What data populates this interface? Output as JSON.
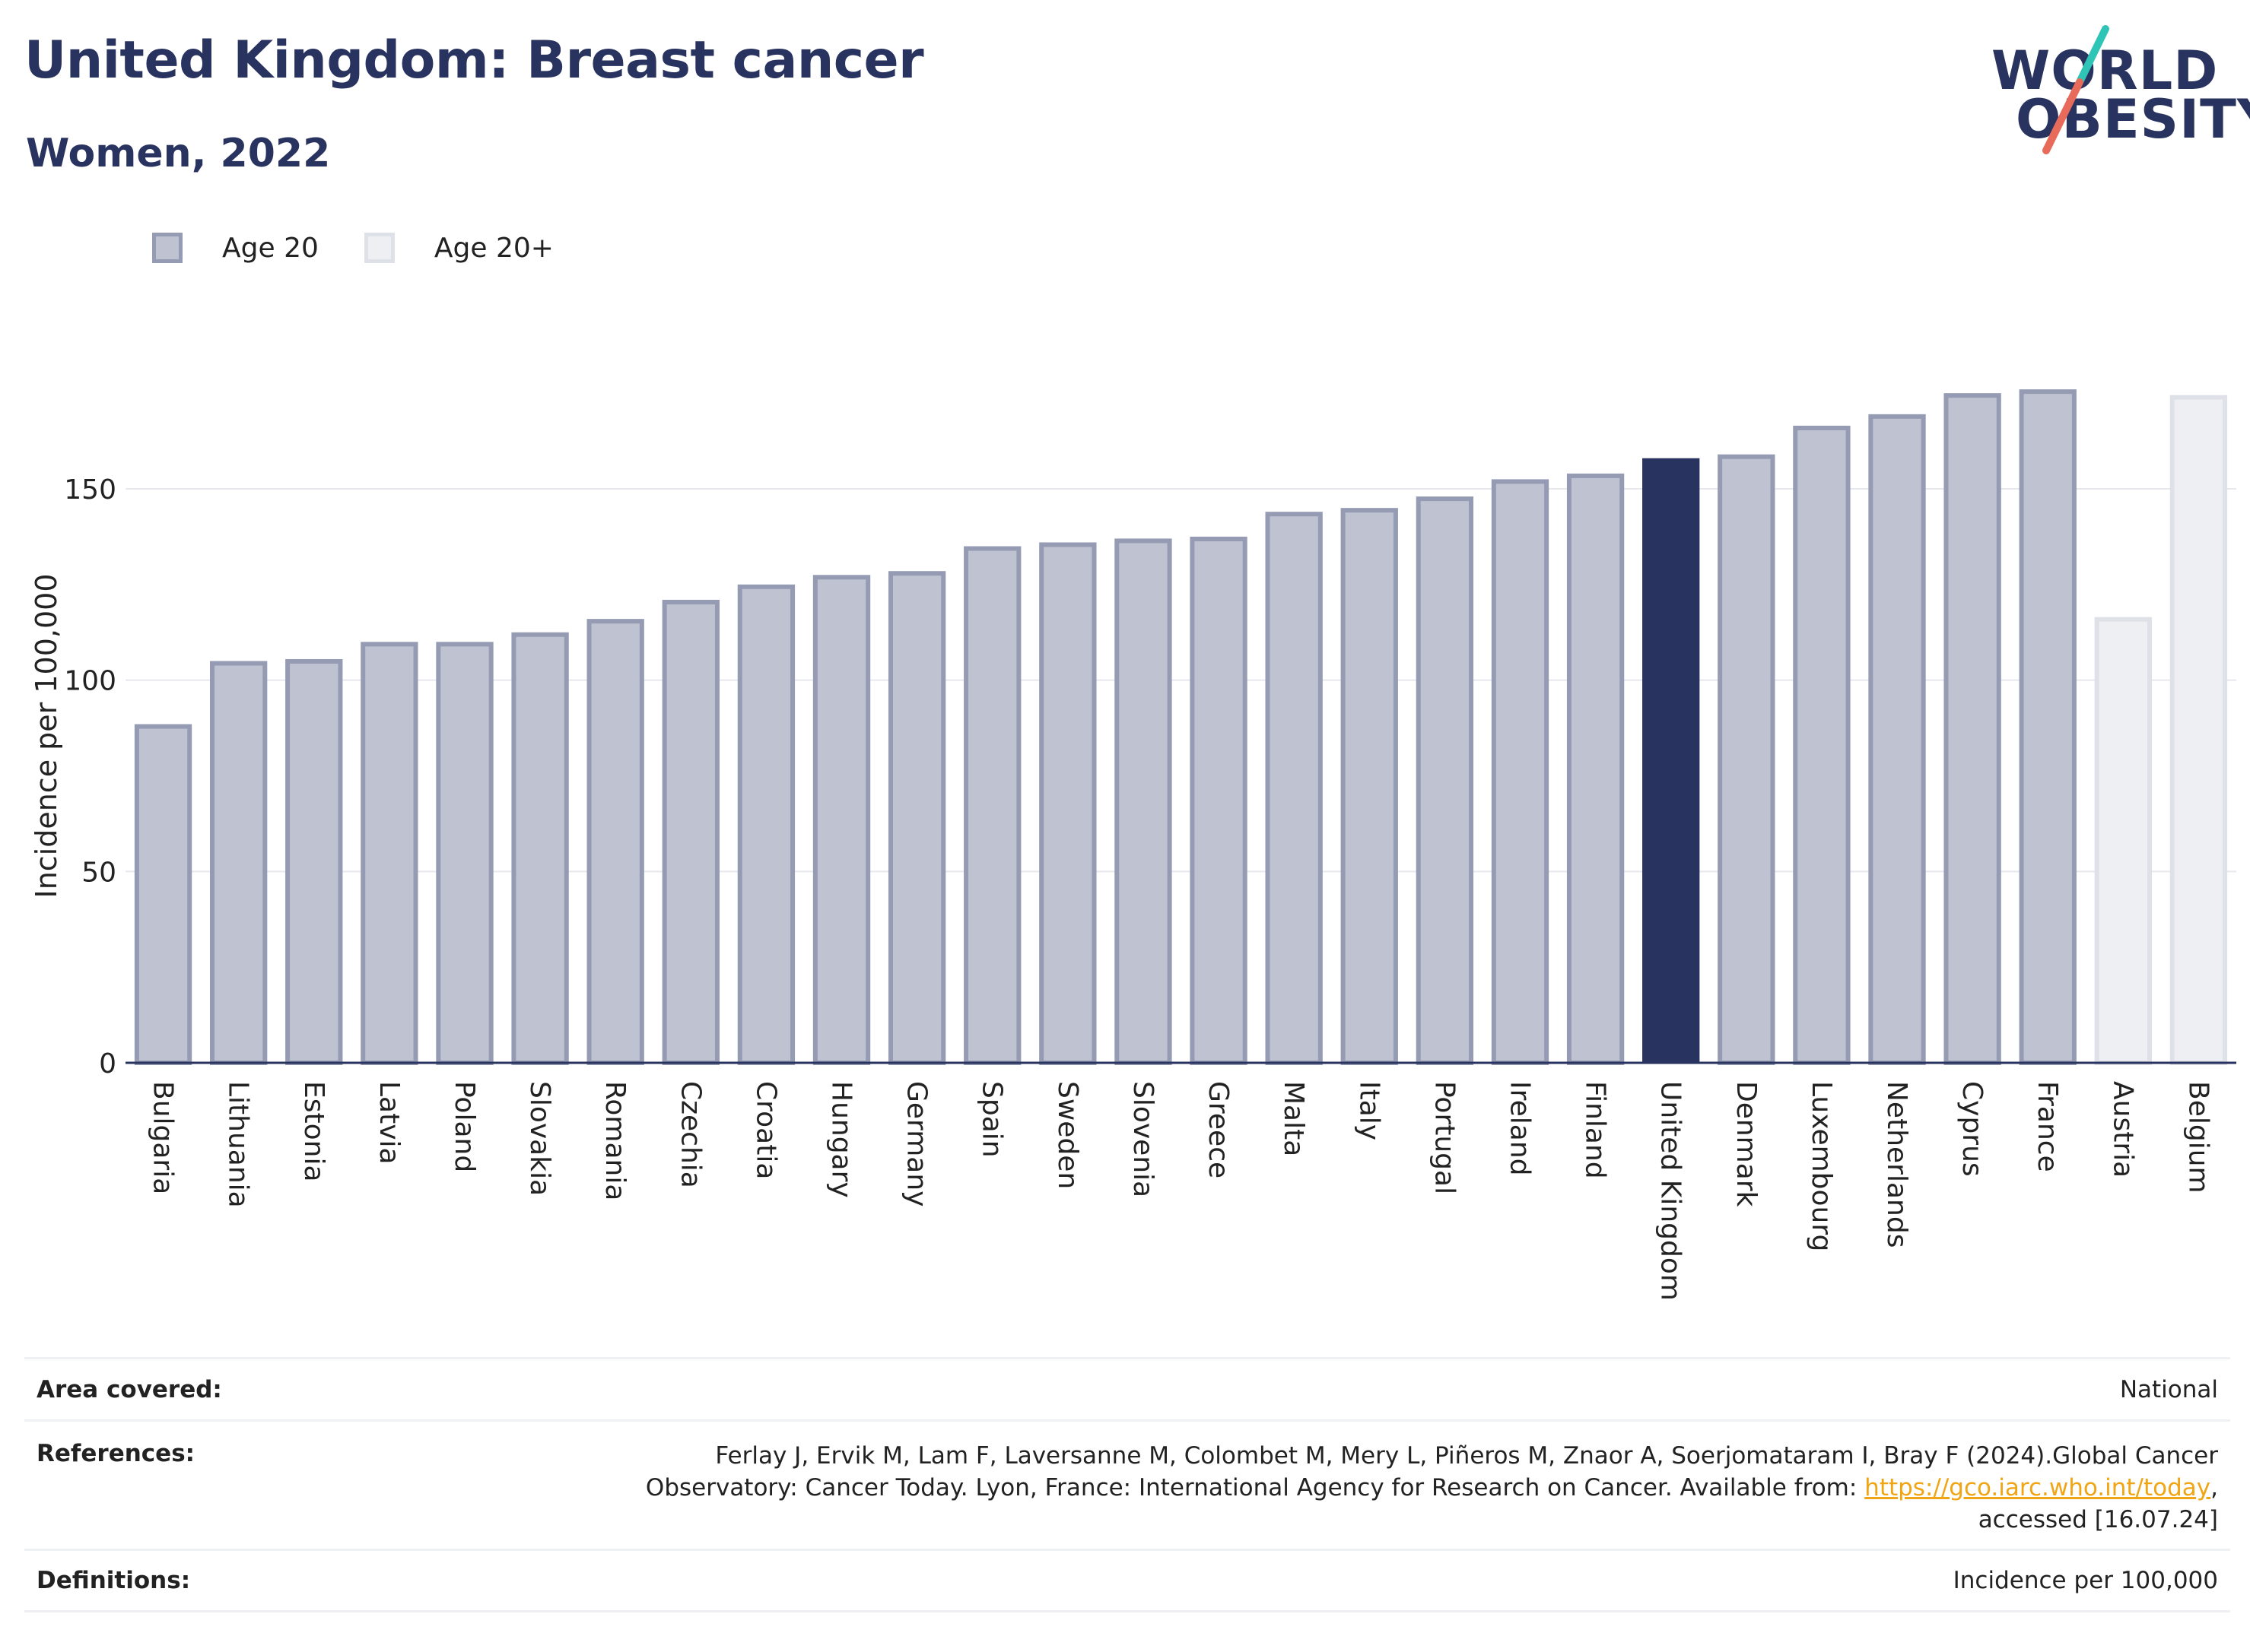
{
  "header": {
    "title": "United Kingdom: Breast cancer",
    "subtitle": "Women, 2022"
  },
  "logo": {
    "line1": "WORLD",
    "line2": "OBESITY",
    "text": "WORLD OBESITY"
  },
  "legend": {
    "items": [
      {
        "label": "Age 20"
      },
      {
        "label": "Age 20+"
      }
    ]
  },
  "colors": {
    "age20_fill": "#bfc2d0",
    "age20_stroke": "#959bb3",
    "age20plus_fill": "#eeeff3",
    "age20plus_stroke": "#dfe1e8",
    "highlight": "#29335f",
    "logo_slash_teal": "#2ec4b6",
    "logo_slash_red": "#e86a5a",
    "link": "#f0a514"
  },
  "chart_data": {
    "type": "bar",
    "ylabel": "Incidence per 100,000",
    "xlabel": "",
    "ylim": [
      0,
      190
    ],
    "yticks": [
      0,
      50,
      100,
      150
    ],
    "grid": true,
    "legend_position": "top-left",
    "highlight": "United Kingdom",
    "categories": [
      "Bulgaria",
      "Lithuania",
      "Estonia",
      "Latvia",
      "Poland",
      "Slovakia",
      "Romania",
      "Czechia",
      "Croatia",
      "Hungary",
      "Germany",
      "Spain",
      "Sweden",
      "Slovenia",
      "Greece",
      "Malta",
      "Italy",
      "Portugal",
      "Ireland",
      "Finland",
      "United Kingdom",
      "Denmark",
      "Luxembourg",
      "Netherlands",
      "Cyprus",
      "France",
      "Austria",
      "Belgium"
    ],
    "series_by_category": [
      "Age 20",
      "Age 20",
      "Age 20",
      "Age 20",
      "Age 20",
      "Age 20",
      "Age 20",
      "Age 20",
      "Age 20",
      "Age 20",
      "Age 20",
      "Age 20",
      "Age 20",
      "Age 20",
      "Age 20",
      "Age 20",
      "Age 20",
      "Age 20",
      "Age 20",
      "Age 20",
      "Age 20",
      "Age 20",
      "Age 20",
      "Age 20",
      "Age 20",
      "Age 20",
      "Age 20+",
      "Age 20+"
    ],
    "values": [
      88.5,
      105,
      105.5,
      110,
      110,
      112.5,
      116,
      121,
      125,
      127.5,
      128.5,
      135,
      136,
      137,
      137.5,
      144,
      145,
      148,
      152.5,
      154,
      158,
      159,
      166.5,
      169.5,
      175,
      176,
      116.5,
      174.5
    ]
  },
  "footer": {
    "area_label": "Area covered:",
    "area_value": "National",
    "references_label": "References:",
    "references_line1": "Ferlay J, Ervik M, Lam F, Laversanne M, Colombet M, Mery L, Piñeros M, Znaor A, Soerjomataram I, Bray F (2024).Global Cancer",
    "references_line2_pre": "Observatory: Cancer Today. Lyon, France: International Agency for Research on Cancer. Available from: ",
    "references_link": "https://gco.iarc.who.int/today",
    "references_line2_post": ",",
    "references_line3": "accessed [16.07.24]",
    "definitions_label": "Definitions:",
    "definitions_value": "Incidence per 100,000"
  }
}
